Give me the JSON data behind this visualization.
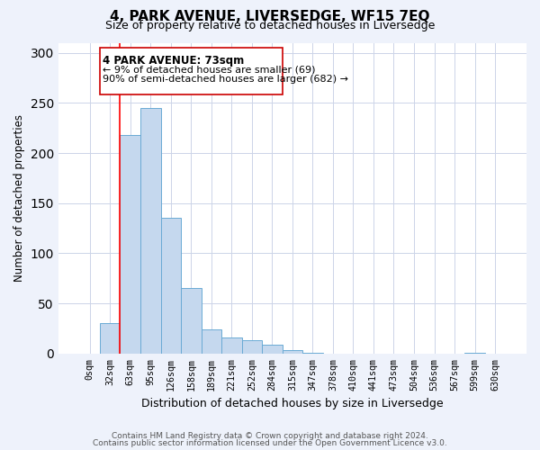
{
  "title": "4, PARK AVENUE, LIVERSEDGE, WF15 7EQ",
  "subtitle": "Size of property relative to detached houses in Liversedge",
  "bar_values": [
    0,
    30,
    218,
    245,
    135,
    65,
    24,
    16,
    13,
    9,
    3,
    1,
    0,
    0,
    0,
    0,
    0,
    0,
    0,
    1,
    0
  ],
  "bar_labels": [
    "0sqm",
    "32sqm",
    "63sqm",
    "95sqm",
    "126sqm",
    "158sqm",
    "189sqm",
    "221sqm",
    "252sqm",
    "284sqm",
    "315sqm",
    "347sqm",
    "378sqm",
    "410sqm",
    "441sqm",
    "473sqm",
    "504sqm",
    "536sqm",
    "567sqm",
    "599sqm",
    "630sqm"
  ],
  "bar_color": "#c5d8ee",
  "bar_edge_color": "#6aaad4",
  "red_line_bin": 2,
  "ylabel": "Number of detached properties",
  "xlabel": "Distribution of detached houses by size in Liversedge",
  "ylim": [
    0,
    310
  ],
  "yticks": [
    0,
    50,
    100,
    150,
    200,
    250,
    300
  ],
  "annotation_lines": [
    "4 PARK AVENUE: 73sqm",
    "← 9% of detached houses are smaller (69)",
    "90% of semi-detached houses are larger (682) →"
  ],
  "footer_line1": "Contains HM Land Registry data © Crown copyright and database right 2024.",
  "footer_line2": "Contains public sector information licensed under the Open Government Licence v3.0.",
  "bg_color": "#eef2fb",
  "plot_bg_color": "#ffffff",
  "grid_color": "#ccd4e8"
}
